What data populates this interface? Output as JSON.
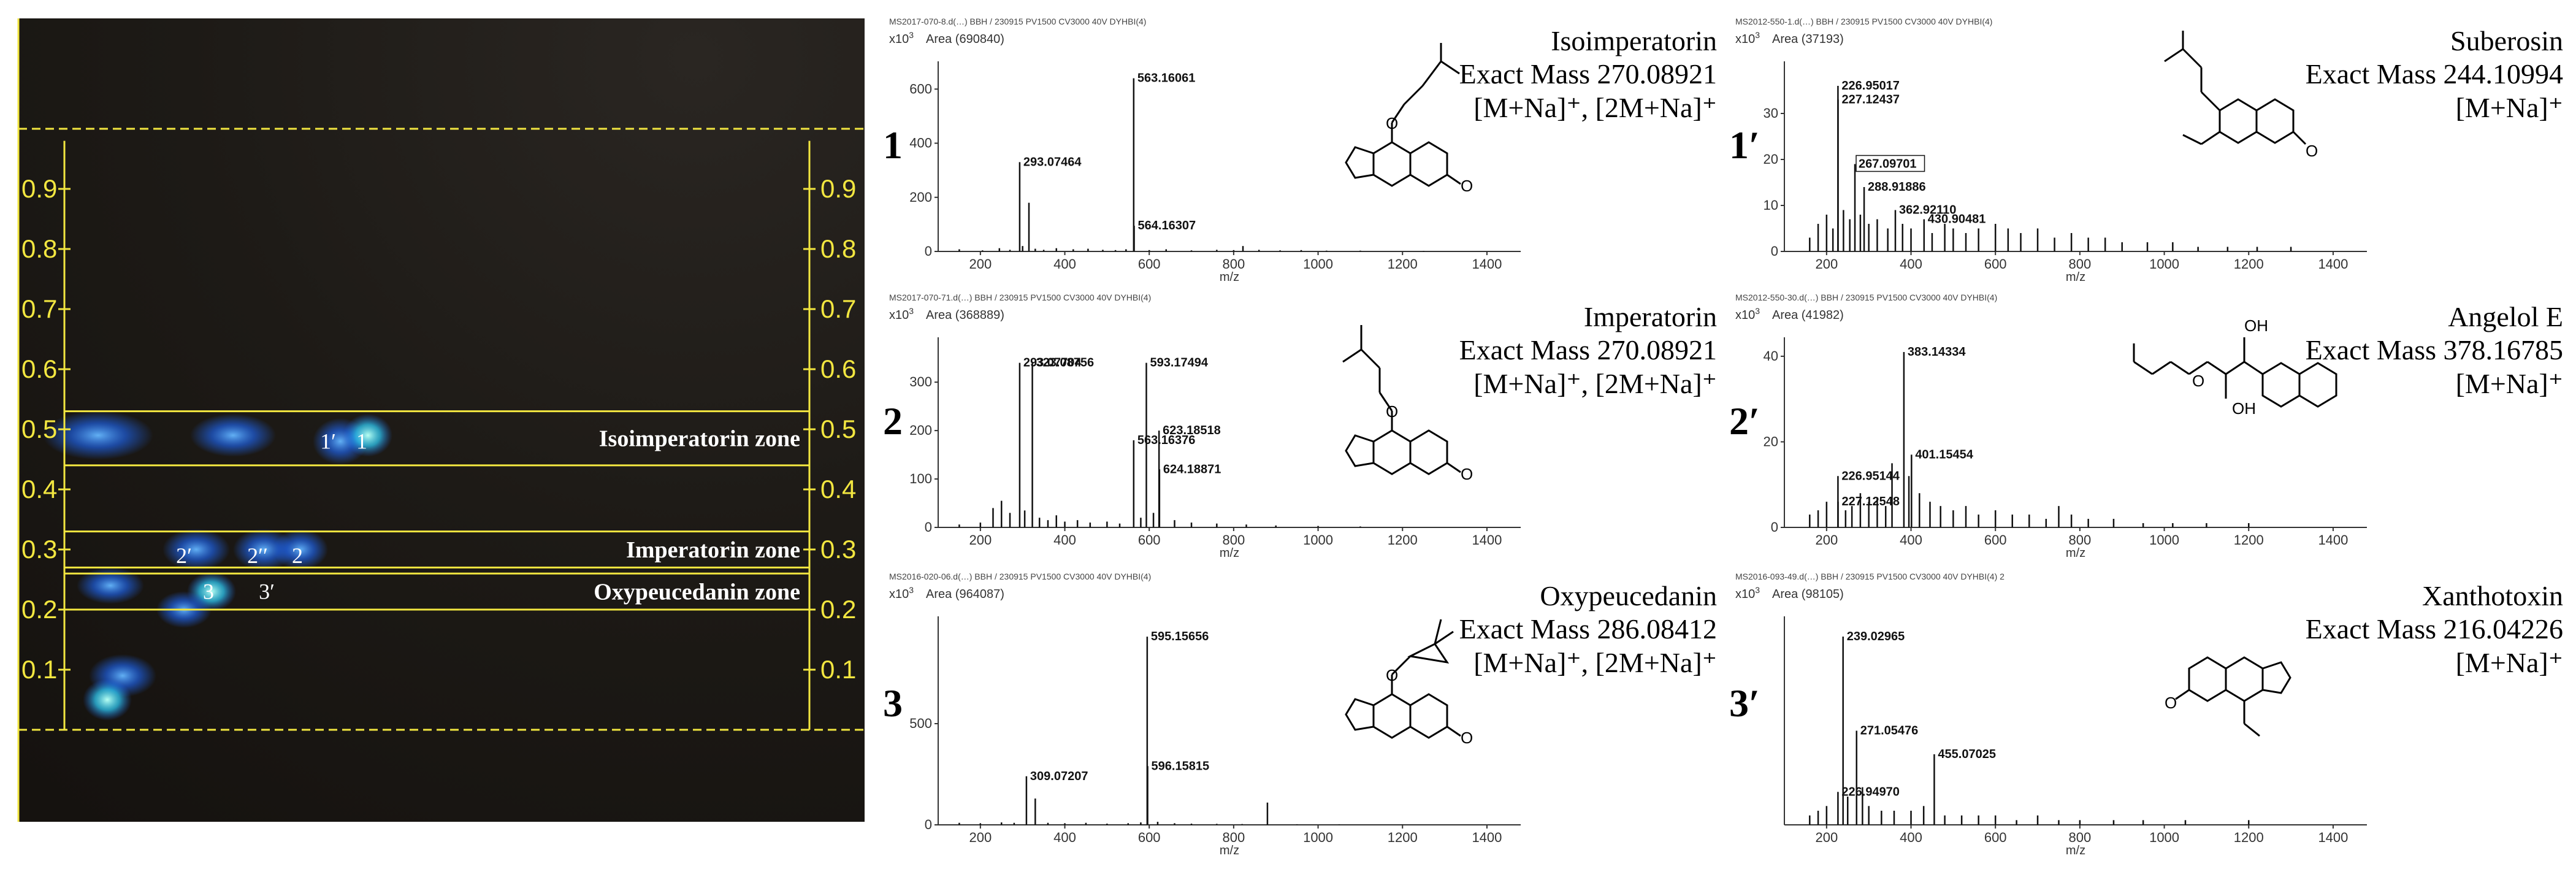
{
  "tlc": {
    "scale_values": [
      0.1,
      0.2,
      0.3,
      0.4,
      0.5,
      0.6,
      0.7,
      0.8,
      0.9
    ],
    "scale_labels": [
      "0.1",
      "0.2",
      "0.3",
      "0.4",
      "0.5",
      "0.6",
      "0.7",
      "0.8",
      "0.9"
    ],
    "zones": [
      {
        "label": "Isoimperatorin zone",
        "rf_top": 0.53,
        "rf_bottom": 0.44
      },
      {
        "label": "Imperatorin zone",
        "rf_top": 0.33,
        "rf_bottom": 0.27
      },
      {
        "label": "Oxypeucedanin zone",
        "rf_top": 0.26,
        "rf_bottom": 0.2
      }
    ],
    "spot_labels": [
      {
        "text": "1′",
        "rf": 0.48
      },
      {
        "text": "1",
        "rf": 0.48
      },
      {
        "text": "2′",
        "rf": 0.29
      },
      {
        "text": "2′′",
        "rf": 0.29
      },
      {
        "text": "2",
        "rf": 0.29
      },
      {
        "text": "3",
        "rf": 0.23
      },
      {
        "text": "3′",
        "rf": 0.23
      }
    ],
    "colors": {
      "plate": "#1b1712",
      "guide": "#f2e640",
      "spot": "#1f7bff"
    }
  },
  "chart_data": [
    {
      "type": "bar",
      "id": "1",
      "title": "Isoimperatorin",
      "info": [
        "Exact Mass 270.08921",
        "[M+Na]⁺, [2M+Na]⁺"
      ],
      "header": "MS2017-070-8.d(…) BBH / 230915 PV1500 CV3000 40V DYHBI(4)",
      "area": "Area (690840)",
      "yscale": "x10",
      "yexp": "3",
      "xlabel": "m/z",
      "xlim": [
        100,
        1480
      ],
      "ylim": [
        0,
        680
      ],
      "yticks": [
        0,
        200,
        400,
        600
      ],
      "xticks": [
        200,
        400,
        600,
        800,
        1000,
        1200,
        1400
      ],
      "x": [
        150,
        205,
        245,
        270,
        293.07,
        300,
        315,
        330,
        350,
        380,
        420,
        455,
        490,
        520,
        545,
        563.16,
        564.16,
        600,
        640,
        700,
        760,
        800,
        822,
        860,
        910,
        960,
        1020,
        1100,
        1250
      ],
      "y": [
        8,
        4,
        12,
        6,
        330,
        20,
        180,
        10,
        6,
        12,
        8,
        10,
        6,
        5,
        8,
        640,
        95,
        5,
        8,
        4,
        6,
        5,
        20,
        6,
        4,
        5,
        3,
        3,
        2
      ],
      "peak_labels": [
        {
          "x": 293.07464,
          "y": 330,
          "t": "293.07464"
        },
        {
          "x": 563.16061,
          "y": 640,
          "t": "563.16061"
        },
        {
          "x": 564.16307,
          "y": 95,
          "t": "564.16307"
        }
      ]
    },
    {
      "type": "bar",
      "id": "1′",
      "title": "Suberosin",
      "info": [
        "Exact Mass 244.10994",
        "[M+Na]⁺"
      ],
      "header": "MS2012-550-1.d(…) BBH / 230915 PV1500 CV3000 40V DYHBI(4)",
      "area": "Area (37193)",
      "yscale": "x10",
      "yexp": "3",
      "xlabel": "m/z",
      "xlim": [
        100,
        1480
      ],
      "ylim": [
        0,
        40
      ],
      "yticks": [
        0,
        10,
        20,
        30
      ],
      "xticks": [
        200,
        400,
        600,
        800,
        1000,
        1200,
        1400
      ],
      "x": [
        160,
        180,
        200,
        215,
        226.95,
        227.12,
        240,
        255,
        267.09,
        280,
        288.92,
        300,
        320,
        345,
        362.92,
        380,
        400,
        430.9,
        450,
        480,
        500,
        530,
        560,
        600,
        630,
        660,
        700,
        740,
        780,
        820,
        860,
        900,
        960,
        1020,
        1080,
        1150,
        1220,
        1300
      ],
      "y": [
        3,
        6,
        8,
        5,
        36,
        33,
        9,
        7,
        19,
        8,
        14,
        6,
        7,
        5,
        9,
        6,
        5,
        7,
        4,
        6,
        5,
        4,
        5,
        6,
        5,
        4,
        5,
        3,
        4,
        3,
        3,
        2,
        2,
        2,
        1,
        1,
        1,
        1
      ],
      "peak_labels": [
        {
          "x": 226.95017,
          "y": 36,
          "t": "226.95017"
        },
        {
          "x": 227.12437,
          "y": 33,
          "t": "227.12437"
        },
        {
          "x": 267.09701,
          "y": 19,
          "t": "267.09701",
          "boxed": true
        },
        {
          "x": 288.91886,
          "y": 14,
          "t": "288.91886"
        },
        {
          "x": 362.9211,
          "y": 9,
          "t": "362.92110"
        },
        {
          "x": 430.90481,
          "y": 7,
          "t": "430.90481"
        }
      ]
    },
    {
      "type": "bar",
      "id": "2",
      "title": "Imperatorin",
      "info": [
        "Exact Mass 270.08921",
        "[M+Na]⁺, [2M+Na]⁺"
      ],
      "header": "MS2017-070-71.d(…) BBH / 230915 PV1500 CV3000 40V DYHBI(4)",
      "area": "Area (368889)",
      "yscale": "x10",
      "yexp": "3",
      "xlabel": "m/z",
      "xlim": [
        100,
        1480
      ],
      "ylim": [
        0,
        380
      ],
      "yticks": [
        0,
        100,
        200,
        300
      ],
      "xticks": [
        200,
        400,
        600,
        800,
        1000,
        1200,
        1400
      ],
      "x": [
        150,
        200,
        230,
        250,
        270,
        293.08,
        305,
        323.09,
        340,
        360,
        380,
        400,
        430,
        460,
        500,
        530,
        563.16,
        580,
        593.17,
        610,
        623.19,
        624.19,
        660,
        700,
        760,
        830,
        900,
        1000,
        1100
      ],
      "y": [
        6,
        10,
        40,
        55,
        30,
        340,
        35,
        340,
        20,
        15,
        25,
        12,
        15,
        10,
        12,
        8,
        180,
        20,
        340,
        30,
        200,
        120,
        15,
        10,
        8,
        6,
        4,
        3,
        2
      ],
      "peak_labels": [
        {
          "x": 293.07704,
          "y": 340,
          "t": "293.07704"
        },
        {
          "x": 323.08756,
          "y": 340,
          "t": "323.08756"
        },
        {
          "x": 593.17494,
          "y": 340,
          "t": "593.17494"
        },
        {
          "x": 563.16376,
          "y": 180,
          "t": "563.16376"
        },
        {
          "x": 623.18518,
          "y": 200,
          "t": "623.18518"
        },
        {
          "x": 624.18871,
          "y": 120,
          "t": "624.18871"
        }
      ]
    },
    {
      "type": "bar",
      "id": "2′",
      "title": "Angelol E",
      "info": [
        "Exact Mass 378.16785",
        "[M+Na]⁺"
      ],
      "header": "MS2012-550-30.d(…) BBH / 230915 PV1500 CV3000 40V DYHBI(4)",
      "area": "Area (41982)",
      "yscale": "x10",
      "yexp": "3",
      "xlabel": "m/z",
      "xlim": [
        100,
        1480
      ],
      "ylim": [
        0,
        43
      ],
      "yticks": [
        0,
        20,
        40
      ],
      "xticks": [
        200,
        400,
        600,
        800,
        1000,
        1200,
        1400
      ],
      "x": [
        160,
        180,
        200,
        226.95,
        227.13,
        245,
        260,
        280,
        300,
        320,
        340,
        355,
        383.14,
        395,
        401.15,
        420,
        445,
        470,
        500,
        530,
        560,
        600,
        640,
        680,
        720,
        750,
        780,
        820,
        880,
        950,
        1020,
        1100,
        1200
      ],
      "y": [
        3,
        4,
        6,
        12,
        6,
        4,
        5,
        8,
        6,
        7,
        5,
        15,
        41,
        12,
        17,
        8,
        6,
        5,
        4,
        5,
        3,
        4,
        3,
        3,
        2,
        5,
        3,
        2,
        2,
        1,
        1,
        1,
        1
      ],
      "peak_labels": [
        {
          "x": 383.14334,
          "y": 41,
          "t": "383.14334"
        },
        {
          "x": 226.95144,
          "y": 12,
          "t": "226.95144"
        },
        {
          "x": 227.12548,
          "y": 6,
          "t": "227.12548"
        },
        {
          "x": 401.15454,
          "y": 17,
          "t": "401.15454"
        }
      ]
    },
    {
      "type": "bar",
      "id": "3",
      "title": "Oxypeucedanin",
      "info": [
        "Exact Mass 286.08412",
        "[M+Na]⁺, [2M+Na]⁺"
      ],
      "header": "MS2016-020-06.d(…) BBH / 230915 PV1500 CV3000 40V DYHBI(4)",
      "area": "Area (964087)",
      "yscale": "x10",
      "yexp": "3",
      "xlabel": "m/z",
      "xlim": [
        100,
        1480
      ],
      "ylim": [
        0,
        1000
      ],
      "yticks": [
        0,
        500
      ],
      "xticks": [
        200,
        400,
        600,
        800,
        1000,
        1200,
        1400
      ],
      "x": [
        150,
        200,
        250,
        280,
        309.07,
        330,
        360,
        400,
        450,
        500,
        550,
        580,
        595.16,
        596.16,
        620,
        660,
        700,
        760,
        820,
        880,
        950,
        1050,
        1200
      ],
      "y": [
        10,
        8,
        12,
        10,
        240,
        130,
        10,
        8,
        10,
        6,
        8,
        12,
        930,
        290,
        15,
        8,
        6,
        5,
        4,
        110,
        3,
        2,
        2
      ],
      "peak_labels": [
        {
          "x": 595.15656,
          "y": 930,
          "t": "595.15656"
        },
        {
          "x": 596.15815,
          "y": 290,
          "t": "596.15815"
        },
        {
          "x": 309.07207,
          "y": 240,
          "t": "309.07207"
        }
      ]
    },
    {
      "type": "bar",
      "id": "3′",
      "title": "Xanthotoxin",
      "info": [
        "Exact Mass 216.04226",
        "[M+Na]⁺"
      ],
      "header": "MS2016-093-49.d(…) BBH / 230915 PV1500 CV3000 40V DYHBI(4) 2",
      "area": "Area (98105)",
      "yscale": "x10",
      "yexp": "3",
      "xlabel": "m/z",
      "xlim": [
        100,
        1480
      ],
      "ylim": [
        0,
        43
      ],
      "yticks": [],
      "xticks": [
        200,
        400,
        600,
        800,
        1000,
        1200,
        1400
      ],
      "x": [
        160,
        180,
        200,
        226.95,
        239.03,
        250,
        271.05,
        285,
        300,
        330,
        360,
        400,
        430,
        455.07,
        480,
        520,
        560,
        600,
        650,
        700,
        750,
        800,
        880,
        950,
        1050,
        1200
      ],
      "y": [
        2,
        3,
        4,
        7,
        40,
        6,
        20,
        8,
        4,
        3,
        3,
        3,
        4,
        15,
        2,
        2,
        2,
        2,
        1,
        2,
        1,
        1,
        1,
        1,
        1,
        1
      ],
      "peak_labels": [
        {
          "x": 239.02965,
          "y": 40,
          "t": "239.02965"
        },
        {
          "x": 271.05476,
          "y": 20,
          "t": "271.05476"
        },
        {
          "x": 455.07025,
          "y": 15,
          "t": "455.07025"
        },
        {
          "x": 226.9497,
          "y": 7,
          "t": "226.94970"
        }
      ]
    }
  ]
}
